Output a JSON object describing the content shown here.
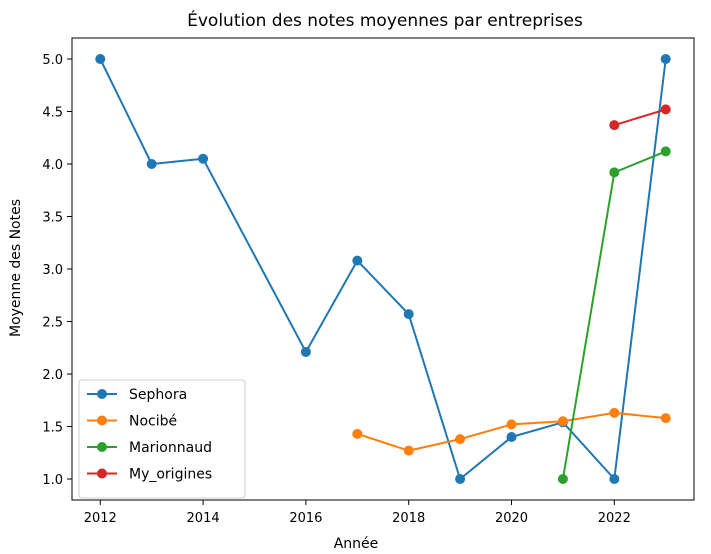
{
  "chart_data": {
    "type": "line",
    "title": "Évolution des notes moyennes par entreprises",
    "xlabel": "Année",
    "ylabel": "Moyenne des Notes",
    "xlim": [
      2011.45,
      2023.55
    ],
    "ylim": [
      0.8,
      5.2
    ],
    "xticks": [
      2012,
      2014,
      2016,
      2018,
      2020,
      2022
    ],
    "yticks": [
      1.0,
      1.5,
      2.0,
      2.5,
      3.0,
      3.5,
      4.0,
      4.5,
      5.0
    ],
    "ytick_labels": [
      "1.0",
      "1.5",
      "2.0",
      "2.5",
      "3.0",
      "3.5",
      "4.0",
      "4.5",
      "5.0"
    ],
    "xtick_labels": [
      "2012",
      "2014",
      "2016",
      "2018",
      "2020",
      "2022"
    ],
    "legend_position": "lower-left",
    "series": [
      {
        "name": "Sephora",
        "color": "#1f77b4",
        "x": [
          2012,
          2013,
          2014,
          2016,
          2017,
          2018,
          2019,
          2020,
          2021,
          2022,
          2023
        ],
        "y": [
          5.0,
          4.0,
          4.05,
          2.21,
          3.08,
          2.57,
          1.0,
          1.4,
          1.54,
          1.0,
          5.0
        ]
      },
      {
        "name": "Nocibé",
        "color": "#ff7f0e",
        "x": [
          2017,
          2018,
          2019,
          2020,
          2021,
          2022,
          2023
        ],
        "y": [
          1.43,
          1.27,
          1.38,
          1.52,
          1.55,
          1.63,
          1.58
        ]
      },
      {
        "name": "Marionnaud",
        "color": "#2ca02c",
        "x": [
          2021,
          2022,
          2023
        ],
        "y": [
          1.0,
          3.92,
          4.12
        ]
      },
      {
        "name": "My_origines",
        "color": "#d62728",
        "x": [
          2022,
          2023
        ],
        "y": [
          4.37,
          4.52
        ]
      }
    ]
  }
}
